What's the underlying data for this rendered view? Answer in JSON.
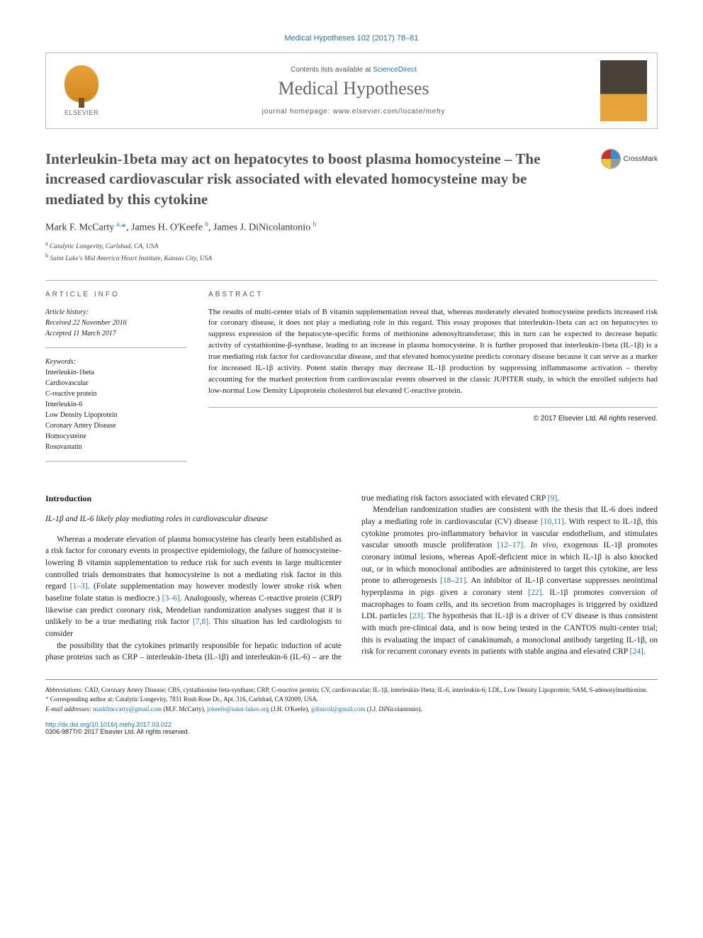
{
  "journal_ref": "Medical Hypotheses 102 (2017) 78–81",
  "header": {
    "contents_prefix": "Contents lists available at ",
    "contents_link": "ScienceDirect",
    "journal_name": "Medical Hypotheses",
    "homepage_prefix": "journal homepage: ",
    "homepage_url": "www.elsevier.com/locate/mehy",
    "publisher_label": "ELSEVIER"
  },
  "crossmark_label": "CrossMark",
  "title": "Interleukin-1beta may act on hepatocytes to boost plasma homocysteine – The increased cardiovascular risk associated with elevated homocysteine may be mediated by this cytokine",
  "authors_html": "Mark F. McCarty <sup>a,</sup><span class='star'>*</span>, James H. O'Keefe <sup>b</sup>, James J. DiNicolantonio <sup>b</sup>",
  "affiliations": [
    "a Catalytic Longevity, Carlsbad, CA, USA",
    "b Saint Luke's Mid America Heart Institute, Kansas City, USA"
  ],
  "info": {
    "label": "ARTICLE INFO",
    "history_label": "Article history:",
    "received": "Received 22 November 2016",
    "accepted": "Accepted 11 March 2017",
    "keywords_label": "Keywords:",
    "keywords": [
      "Interleukin-1beta",
      "Cardiovascular",
      "C-reactive protein",
      "Interleukin-6",
      "Low Density Lipoprotein",
      "Coronary Artery Disease",
      "Homocysteine",
      "Rosuvastatin"
    ]
  },
  "abstract": {
    "label": "ABSTRACT",
    "text": "The results of multi-center trials of B vitamin supplementation reveal that, whereas moderately elevated homocysteine predicts increased risk for coronary disease, it does not play a mediating role in this regard. This essay proposes that interleukin-1beta can act on hepatocytes to suppress expression of the hepatocyte-specific forms of methionine adenosyltransferase; this in turn can be expected to decrease hepatic activity of cystathionine-β-synthase, leading to an increase in plasma homocysteine. It is further proposed that interleukin-1beta (IL-1β) is a true mediating risk factor for cardiovascular disease, and that elevated homocysteine predicts coronary disease because it can serve as a marker for increased IL-1β activity. Potent statin therapy may decrease IL-1β production by suppressing inflammasome activation – thereby accounting for the marked protection from cardiovascular events observed in the classic JUPITER study, in which the enrolled subjects had low-normal Low Density Lipoprotein cholesterol but elevated C-reactive protein.",
    "copyright": "© 2017 Elsevier Ltd. All rights reserved."
  },
  "body": {
    "intro_heading": "Introduction",
    "sub_heading": "IL-1β and IL-6 likely play mediating roles in cardiovascular disease",
    "p1": "Whereas a moderate elevation of plasma homocysteine has clearly been established as a risk factor for coronary events in prospective epidemiology, the failure of homocysteine-lowering B vitamin supplementation to reduce risk for such events in large multicenter controlled trials demonstrates that homocysteine is not a mediating risk factor in this regard [1–3]. (Folate supplementation may however modestly lower stroke risk when baseline folate status is mediocre.) [3–6]. Analogously, whereas C-reactive protein (CRP) likewise can predict coronary risk, Mendelian randomization analyses suggest that it is unlikely to be a true mediating risk factor [7,8]. This situation has led cardiologists to consider",
    "p2": "the possibility that the cytokines primarily responsible for hepatic induction of acute phase proteins such as CRP – interleukin-1beta (IL-1β) and interleukin-6 (IL-6) – are the true mediating risk factors associated with elevated CRP [9].",
    "p3": "Mendelian randomization studies are consistent with the thesis that IL-6 does indeed play a mediating role in cardiovascular (CV) disease [10,11]. With respect to IL-1β, this cytokine promotes pro-inflammatory behavior in vascular endothelium, and stimulates vascular smooth muscle proliferation [12–17]. In vivo, exogenous IL-1β promotes coronary intimal lesions, whereas ApoE-deficient mice in which IL-1β is also knocked out, or in which monoclonal antibodies are administered to target this cytokine, are less prone to atherogenesis [18–21]. An inhibitor of IL-1β convertase suppresses neointimal hyperplasma in pigs given a coronary stent [22]. IL-1β promotes conversion of macrophages to foam cells, and its secretion from macrophages is triggered by oxidized LDL particles [23]. The hypothesis that IL-1β is a driver of CV disease is thus consistent with much pre-clinical data, and is now being tested in the CANTOS multi-center trial; this is evaluating the impact of canakinumab, a monoclonal antibody targeting IL-1β, on risk for recurrent coronary events in patients with stable angina and elevated CRP [24]."
  },
  "footnotes": {
    "abbr_label": "Abbreviations:",
    "abbr_text": " CAD, Coronary Artery Disease; CBS, cystathionine beta-synthase; CRP, C-reactive protein; CV, cardiovascular; IL-1β, interleukin-1beta; IL-6, interleukin-6; LDL, Low Density Lipoprotein; SAM, S-adenosylmethionine.",
    "corr_label": "* Corresponding author at: ",
    "corr_text": "Catalytic Longevity, 7831 Rush Rose Dr., Apt. 316, Carlsbad, CA 92009, USA.",
    "email_label": "E-mail addresses: ",
    "emails": [
      {
        "addr": "markfmccarty@gmail.com",
        "who": "(M.F. McCarty)"
      },
      {
        "addr": "jokeefe@saint-lukes.org",
        "who": "(J.H. O'Keefe)"
      },
      {
        "addr": "jjdinicol@gmail.com",
        "who": "(J.J. DiNicolantonio)"
      }
    ]
  },
  "doi": {
    "url": "http://dx.doi.org/10.1016/j.mehy.2017.03.022",
    "issn_line": "0306-9877/© 2017 Elsevier Ltd. All rights reserved."
  },
  "colors": {
    "link": "#2b6ea8",
    "text": "#1a1a1a",
    "muted": "#555555",
    "rule": "#aaaaaa"
  }
}
